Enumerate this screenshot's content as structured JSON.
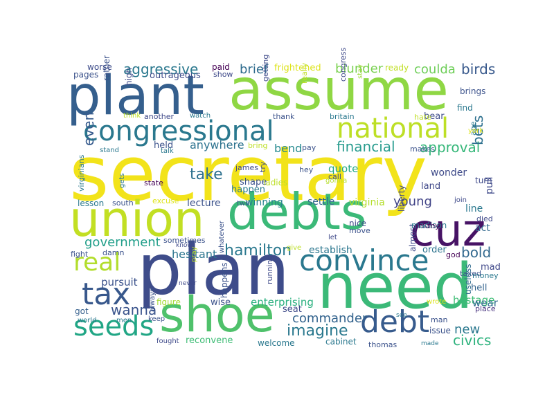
{
  "word_cloud": {
    "words": [
      {
        "text": "secretary",
        "color": "#f2e31a"
      },
      {
        "text": "plan",
        "color": "#3e4c8a"
      },
      {
        "text": "need",
        "color": "#3bb978"
      },
      {
        "text": "assume",
        "color": "#8fd744"
      },
      {
        "text": "plant",
        "color": "#355f8d"
      },
      {
        "text": "debts",
        "color": "#3bb978"
      },
      {
        "text": "union",
        "color": "#c2df23"
      },
      {
        "text": "shoe",
        "color": "#4fc16b"
      },
      {
        "text": "cuz",
        "color": "#471365"
      },
      {
        "text": "congressional",
        "color": "#2a788e"
      },
      {
        "text": "national",
        "color": "#bddf26"
      },
      {
        "text": "convince",
        "color": "#2a788e"
      },
      {
        "text": "debt",
        "color": "#375b8d"
      },
      {
        "text": "seeds",
        "color": "#21a685"
      },
      {
        "text": "tax",
        "color": "#38588c"
      },
      {
        "text": "real",
        "color": "#b2dd2c"
      },
      {
        "text": "government",
        "color": "#1f9e89"
      },
      {
        "text": "hamilton",
        "color": "#2a788e"
      },
      {
        "text": "imagine",
        "color": "#2a788e"
      },
      {
        "text": "commander",
        "color": "#33638d"
      },
      {
        "text": "civics",
        "color": "#2db27d"
      },
      {
        "text": "new",
        "color": "#2a788e"
      },
      {
        "text": "wanna",
        "color": "#3a548c"
      },
      {
        "text": "financial",
        "color": "#2a9d8f"
      },
      {
        "text": "take",
        "color": "#2d708e"
      },
      {
        "text": "approval",
        "color": "#35b779"
      },
      {
        "text": "anywhere",
        "color": "#2c728e"
      },
      {
        "text": "bend",
        "color": "#23898e"
      },
      {
        "text": "young",
        "color": "#414487"
      },
      {
        "text": "bold",
        "color": "#31688e"
      },
      {
        "text": "aggressive",
        "color": "#2a788e"
      },
      {
        "text": "brief",
        "color": "#2f6c8e"
      },
      {
        "text": "blunder",
        "color": "#7ad151"
      },
      {
        "text": "coulda",
        "color": "#6ece58"
      },
      {
        "text": "birds",
        "color": "#38598c"
      },
      {
        "text": "bets",
        "color": "#2d708e"
      },
      {
        "text": "even",
        "color": "#375b8d"
      },
      {
        "text": "pursuit",
        "color": "#3b528b"
      },
      {
        "text": "hesitant",
        "color": "#2b748e"
      },
      {
        "text": "enterprising",
        "color": "#2ab07f"
      },
      {
        "text": "establish",
        "color": "#2a768e"
      },
      {
        "text": "hostage",
        "color": "#3dbc74"
      },
      {
        "text": "wear",
        "color": "#2f6b8e"
      },
      {
        "text": "lecture",
        "color": "#3b528b"
      },
      {
        "text": "winning",
        "color": "#26828e"
      },
      {
        "text": "settle",
        "color": "#31668e"
      },
      {
        "text": "virginia",
        "color": "#b5de2b"
      },
      {
        "text": "wonder",
        "color": "#3e4a89"
      },
      {
        "text": "land",
        "color": "#3f4889"
      },
      {
        "text": "act",
        "color": "#31688e"
      },
      {
        "text": "line",
        "color": "#2a788e"
      },
      {
        "text": "quote",
        "color": "#22a884"
      },
      {
        "text": "shape",
        "color": "#3b528b"
      },
      {
        "text": "happen",
        "color": "#287c8e"
      },
      {
        "text": "held",
        "color": "#3b528b"
      },
      {
        "text": "order",
        "color": "#2c738e"
      },
      {
        "text": "mad",
        "color": "#3f4889"
      },
      {
        "text": "hell",
        "color": "#33638d"
      },
      {
        "text": "seat",
        "color": "#3e4a89"
      },
      {
        "text": "figure",
        "color": "#a5db36"
      },
      {
        "text": "wise",
        "color": "#3b528b"
      },
      {
        "text": "got",
        "color": "#355f8d"
      },
      {
        "text": "pull",
        "color": "#3e4989"
      },
      {
        "text": "turn",
        "color": "#3e4989"
      },
      {
        "text": "died",
        "color": "#3e4989"
      },
      {
        "text": "issue",
        "color": "#3b528b"
      },
      {
        "text": "brings",
        "color": "#3b528b"
      },
      {
        "text": "taxed",
        "color": "#3b528b"
      },
      {
        "text": "find",
        "color": "#2a788e"
      },
      {
        "text": "bear",
        "color": "#3e4c8a"
      },
      {
        "text": "god",
        "color": "#440154"
      },
      {
        "text": "money",
        "color": "#2a788e"
      },
      {
        "text": "place",
        "color": "#46317e"
      },
      {
        "text": "useless",
        "color": "#2f6b8e"
      },
      {
        "text": "worse",
        "color": "#3e4c8a"
      },
      {
        "text": "pages",
        "color": "#3b528b"
      },
      {
        "text": "outrageous",
        "color": "#3e4c8a"
      },
      {
        "text": "paid",
        "color": "#440154"
      },
      {
        "text": "show",
        "color": "#3e4989"
      },
      {
        "text": "frightened",
        "color": "#dde318"
      },
      {
        "text": "ready",
        "color": "#c0df25"
      },
      {
        "text": "high",
        "color": "#3e4c8a"
      },
      {
        "text": "rather",
        "color": "#3b528b"
      },
      {
        "text": "getting",
        "color": "#3e4989"
      },
      {
        "text": "really",
        "color": "#c0df25"
      },
      {
        "text": "congress",
        "color": "#3e4989"
      },
      {
        "text": "stay",
        "color": "#9fda3a"
      },
      {
        "text": "hate",
        "color": "#c0df25"
      },
      {
        "text": "age",
        "color": "#2a788e"
      },
      {
        "text": "york",
        "color": "#dde318"
      },
      {
        "text": "think",
        "color": "#bddf26"
      },
      {
        "text": "another",
        "color": "#3e4989"
      },
      {
        "text": "watch",
        "color": "#2a788e"
      },
      {
        "text": "thank",
        "color": "#3b528b"
      },
      {
        "text": "britain",
        "color": "#2a788e"
      },
      {
        "text": "stand",
        "color": "#2a788e"
      },
      {
        "text": "talk",
        "color": "#2a788e"
      },
      {
        "text": "bring",
        "color": "#bddf26"
      },
      {
        "text": "pay",
        "color": "#3b528b"
      },
      {
        "text": "makes",
        "color": "#3b528b"
      },
      {
        "text": "virginians",
        "color": "#2a788e"
      },
      {
        "text": "gets",
        "color": "#2a788e"
      },
      {
        "text": "state",
        "color": "#440154"
      },
      {
        "text": "james",
        "color": "#3e4989"
      },
      {
        "text": "hey",
        "color": "#3b528b"
      },
      {
        "text": "try",
        "color": "#3e4989"
      },
      {
        "text": "ladies",
        "color": "#bddf26"
      },
      {
        "text": "gonna",
        "color": "#b5de2b"
      },
      {
        "text": "call",
        "color": "#3b528b"
      },
      {
        "text": "liberty",
        "color": "#3e4989"
      },
      {
        "text": "join",
        "color": "#3e4989"
      },
      {
        "text": "excuse",
        "color": "#dde318"
      },
      {
        "text": "lesson",
        "color": "#2a788e"
      },
      {
        "text": "south",
        "color": "#3b528b"
      },
      {
        "text": "two",
        "color": "#3b528b"
      },
      {
        "text": "almost",
        "color": "#3e4989"
      },
      {
        "text": "madison",
        "color": "#2a788e"
      },
      {
        "text": "nice",
        "color": "#3e4989"
      },
      {
        "text": "move",
        "color": "#3b528b"
      },
      {
        "text": "whatever",
        "color": "#3b528b"
      },
      {
        "text": "many",
        "color": "#440154"
      },
      {
        "text": "sometimes",
        "color": "#3b528b"
      },
      {
        "text": "know",
        "color": "#3e4989"
      },
      {
        "text": "let",
        "color": "#3e4989"
      },
      {
        "text": "give",
        "color": "#bddf26"
      },
      {
        "text": "damn",
        "color": "#3b528b"
      },
      {
        "text": "fight",
        "color": "#3b528b"
      },
      {
        "text": "pray",
        "color": "#bddf26"
      },
      {
        "text": "happens",
        "color": "#3b528b"
      },
      {
        "text": "running",
        "color": "#3e4989"
      },
      {
        "text": "never",
        "color": "#3e4989"
      },
      {
        "text": "always",
        "color": "#3b528b"
      },
      {
        "text": "world",
        "color": "#2a788e"
      },
      {
        "text": "men",
        "color": "#2a788e"
      },
      {
        "text": "keep",
        "color": "#3b528b"
      },
      {
        "text": "fought",
        "color": "#3e4989"
      },
      {
        "text": "reconvene",
        "color": "#3dbc74"
      },
      {
        "text": "welcome",
        "color": "#2a788e"
      },
      {
        "text": "cabinet",
        "color": "#2a788e"
      },
      {
        "text": "thomas",
        "color": "#3b528b"
      },
      {
        "text": "made",
        "color": "#2a788e"
      },
      {
        "text": "see",
        "color": "#2a788e"
      },
      {
        "text": "wrote",
        "color": "#dde318"
      },
      {
        "text": "man",
        "color": "#3b528b"
      }
    ]
  }
}
